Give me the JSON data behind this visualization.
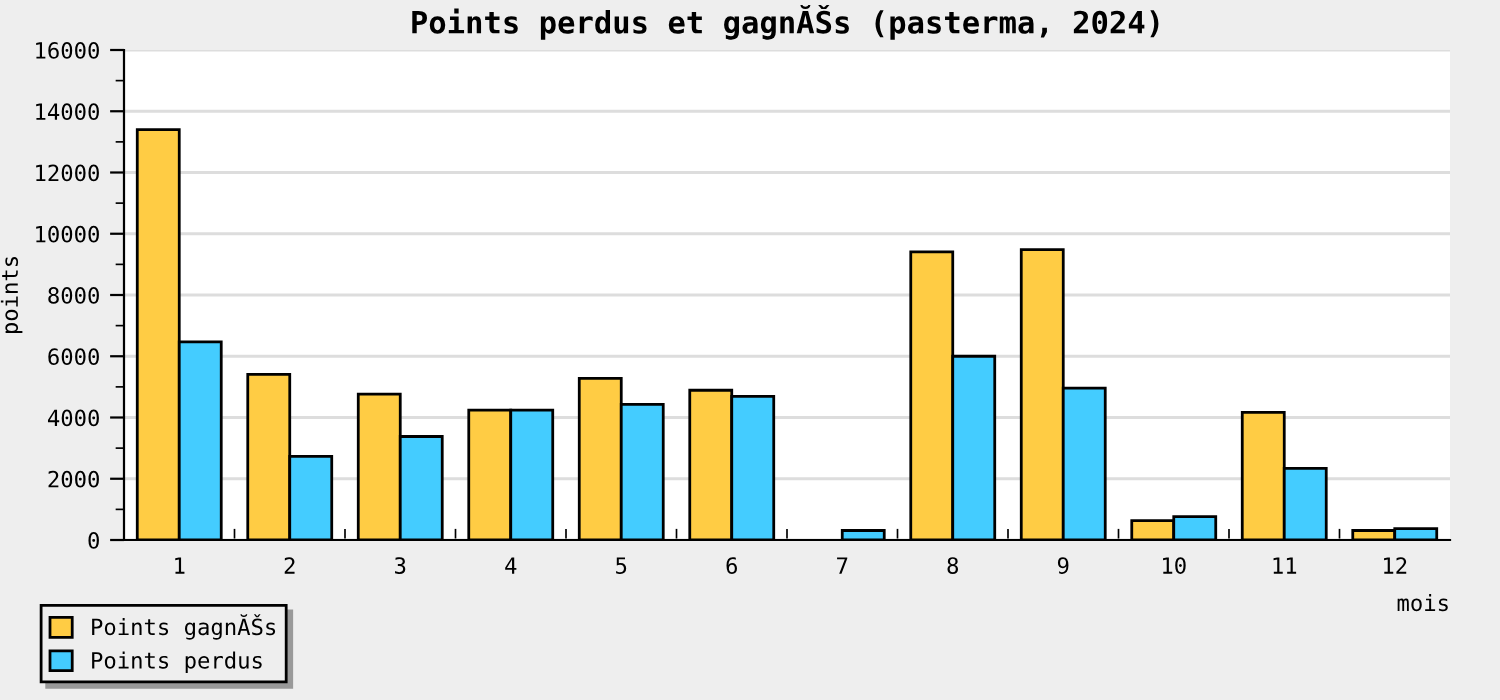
{
  "chart_data": {
    "type": "bar",
    "title": "Points perdus et gagnĂŠs (pasterma, 2024)",
    "xlabel": "mois",
    "ylabel": "points",
    "categories": [
      "1",
      "2",
      "3",
      "4",
      "5",
      "6",
      "7",
      "8",
      "9",
      "10",
      "11",
      "12"
    ],
    "series": [
      {
        "name": "Points gagnĂŠs",
        "color": "#ffcc44",
        "values": [
          13400,
          5410,
          4760,
          4240,
          5280,
          4890,
          0,
          9410,
          9480,
          630,
          4170,
          310
        ]
      },
      {
        "name": "Points perdus",
        "color": "#44ccff",
        "values": [
          6470,
          2730,
          3380,
          4240,
          4430,
          4690,
          310,
          6000,
          4960,
          760,
          2340,
          370
        ]
      }
    ],
    "ylim": [
      0,
      16000
    ],
    "yticks": [
      0,
      2000,
      4000,
      6000,
      8000,
      10000,
      12000,
      14000,
      16000
    ],
    "grid": "y",
    "legend": "bottom left"
  }
}
